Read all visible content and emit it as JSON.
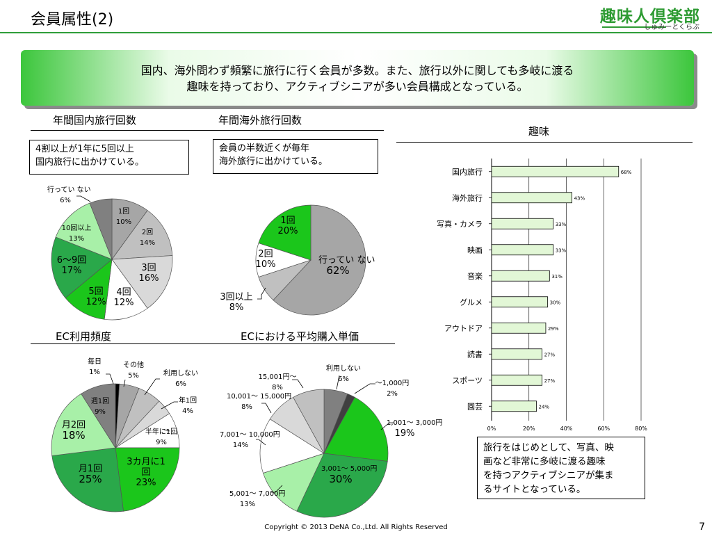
{
  "header": {
    "title": "会員属性(2)",
    "logo_main": "趣味人倶楽部",
    "logo_sub": "しゅみーとくらぶ"
  },
  "banner": {
    "line1": "国内、海外問わず頻繁に旅行に行く会員が多数。また、旅行以外に関しても多岐に渡る",
    "line2": "趣味を持っており、アクティブシニアが多い会員構成となっている。"
  },
  "sections": {
    "domestic": "年間国内旅行回数",
    "overseas": "年間海外旅行回数",
    "hobby": "趣味",
    "ec_freq": "EC利用頻度",
    "ec_price": "ECにおける平均購入単価"
  },
  "notes": {
    "domestic": [
      "4割以上が1年に5回以上",
      "国内旅行に出かけている。"
    ],
    "overseas": [
      "会員の半数近くが毎年",
      "海外旅行に出かけている。"
    ],
    "hobby": [
      "旅行をはじめとして、写真、映",
      "画など非常に多岐に渡る趣味",
      "を持つアクティブシニアが集ま",
      "るサイトとなっている。"
    ]
  },
  "chart_data": [
    {
      "type": "pie",
      "title": "年間国内旅行回数",
      "slices": [
        {
          "label": "1回",
          "value": 10,
          "display": "10%",
          "color": "#a6a6a6"
        },
        {
          "label": "2回",
          "value": 14,
          "display": "14%",
          "color": "#c0c0c0"
        },
        {
          "label": "3回",
          "value": 16,
          "display": "16%",
          "color": "#d9d9d9"
        },
        {
          "label": "4回",
          "value": 12,
          "display": "12%",
          "color": "#ffffff"
        },
        {
          "label": "5回",
          "value": 12,
          "display": "12%",
          "color": "#1bc61b"
        },
        {
          "label": "6〜9回",
          "value": 17,
          "display": "17%",
          "color": "#2aa84a"
        },
        {
          "label": "10回以上",
          "value": 13,
          "display": "13%",
          "color": "#a8f0a8"
        },
        {
          "label": "行ってい ない",
          "value": 6,
          "display": "6%",
          "color": "#808080"
        }
      ]
    },
    {
      "type": "pie",
      "title": "年間海外旅行回数",
      "slices": [
        {
          "label": "行ってい ない",
          "value": 62,
          "display": "62%",
          "color": "#a6a6a6"
        },
        {
          "label": "3回以上",
          "value": 8,
          "display": "8%",
          "color": "#c0c0c0"
        },
        {
          "label": "2回",
          "value": 10,
          "display": "10%",
          "color": "#ffffff"
        },
        {
          "label": "1回",
          "value": 20,
          "display": "20%",
          "color": "#1bc61b"
        }
      ]
    },
    {
      "type": "bar",
      "title": "趣味",
      "orientation": "horizontal",
      "categories": [
        "国内旅行",
        "海外旅行",
        "写真・カメラ",
        "映画",
        "音楽",
        "グルメ",
        "アウトドア",
        "読書",
        "スポーツ",
        "園芸"
      ],
      "values": [
        68,
        43,
        33,
        33,
        31,
        30,
        29,
        27,
        27,
        24
      ],
      "value_labels": [
        "68%",
        "43%",
        "33%",
        "33%",
        "31%",
        "30%",
        "29%",
        "27%",
        "27%",
        "24%"
      ],
      "xlim": [
        0,
        80
      ],
      "xticks": [
        "0%",
        "20%",
        "40%",
        "60%",
        "80%"
      ],
      "bar_color": "#e2f7d6",
      "grid": true
    },
    {
      "type": "pie",
      "title": "EC利用頻度",
      "slices": [
        {
          "label": "毎日",
          "value": 1,
          "display": "1%",
          "color": "#000000"
        },
        {
          "label": "その他",
          "value": 5,
          "display": "5%",
          "color": "#a6a6a6"
        },
        {
          "label": "利用しない",
          "value": 6,
          "display": "6%",
          "color": "#c0c0c0"
        },
        {
          "label": "年1回",
          "value": 4,
          "display": "4%",
          "color": "#d9d9d9"
        },
        {
          "label": "半年に1回",
          "value": 9,
          "display": "9%",
          "color": "#ffffff"
        },
        {
          "label": "3カ月に1回",
          "value": 23,
          "display": "23%",
          "color": "#1bc61b"
        },
        {
          "label": "月1回",
          "value": 25,
          "display": "25%",
          "color": "#2aa84a"
        },
        {
          "label": "月2回",
          "value": 18,
          "display": "18%",
          "color": "#a8f0a8"
        },
        {
          "label": "週1回",
          "value": 9,
          "display": "9%",
          "color": "#808080"
        }
      ]
    },
    {
      "type": "pie",
      "title": "ECにおける平均購入単価",
      "slices": [
        {
          "label": "利用しない",
          "value": 6,
          "display": "6%",
          "color": "#808080"
        },
        {
          "label": "〜1,000円",
          "value": 2,
          "display": "2%",
          "color": "#404040"
        },
        {
          "label": "1,001〜 3,000円",
          "value": 19,
          "display": "19%",
          "color": "#1bc61b"
        },
        {
          "label": "3,001〜 5,000円",
          "value": 30,
          "display": "30%",
          "color": "#2aa84a"
        },
        {
          "label": "5,001〜 7,000円",
          "value": 13,
          "display": "13%",
          "color": "#a8f0a8"
        },
        {
          "label": "7,001〜 10,000円",
          "value": 14,
          "display": "14%",
          "color": "#ffffff"
        },
        {
          "label": "10,001〜 15,000円",
          "value": 8,
          "display": "8%",
          "color": "#d9d9d9"
        },
        {
          "label": "15,001円〜",
          "value": 8,
          "display": "8%",
          "color": "#c0c0c0"
        }
      ]
    }
  ],
  "footer": {
    "copyright": "Copyright © 2013 DeNA Co.,Ltd. All Rights Reserved",
    "page": "7"
  }
}
